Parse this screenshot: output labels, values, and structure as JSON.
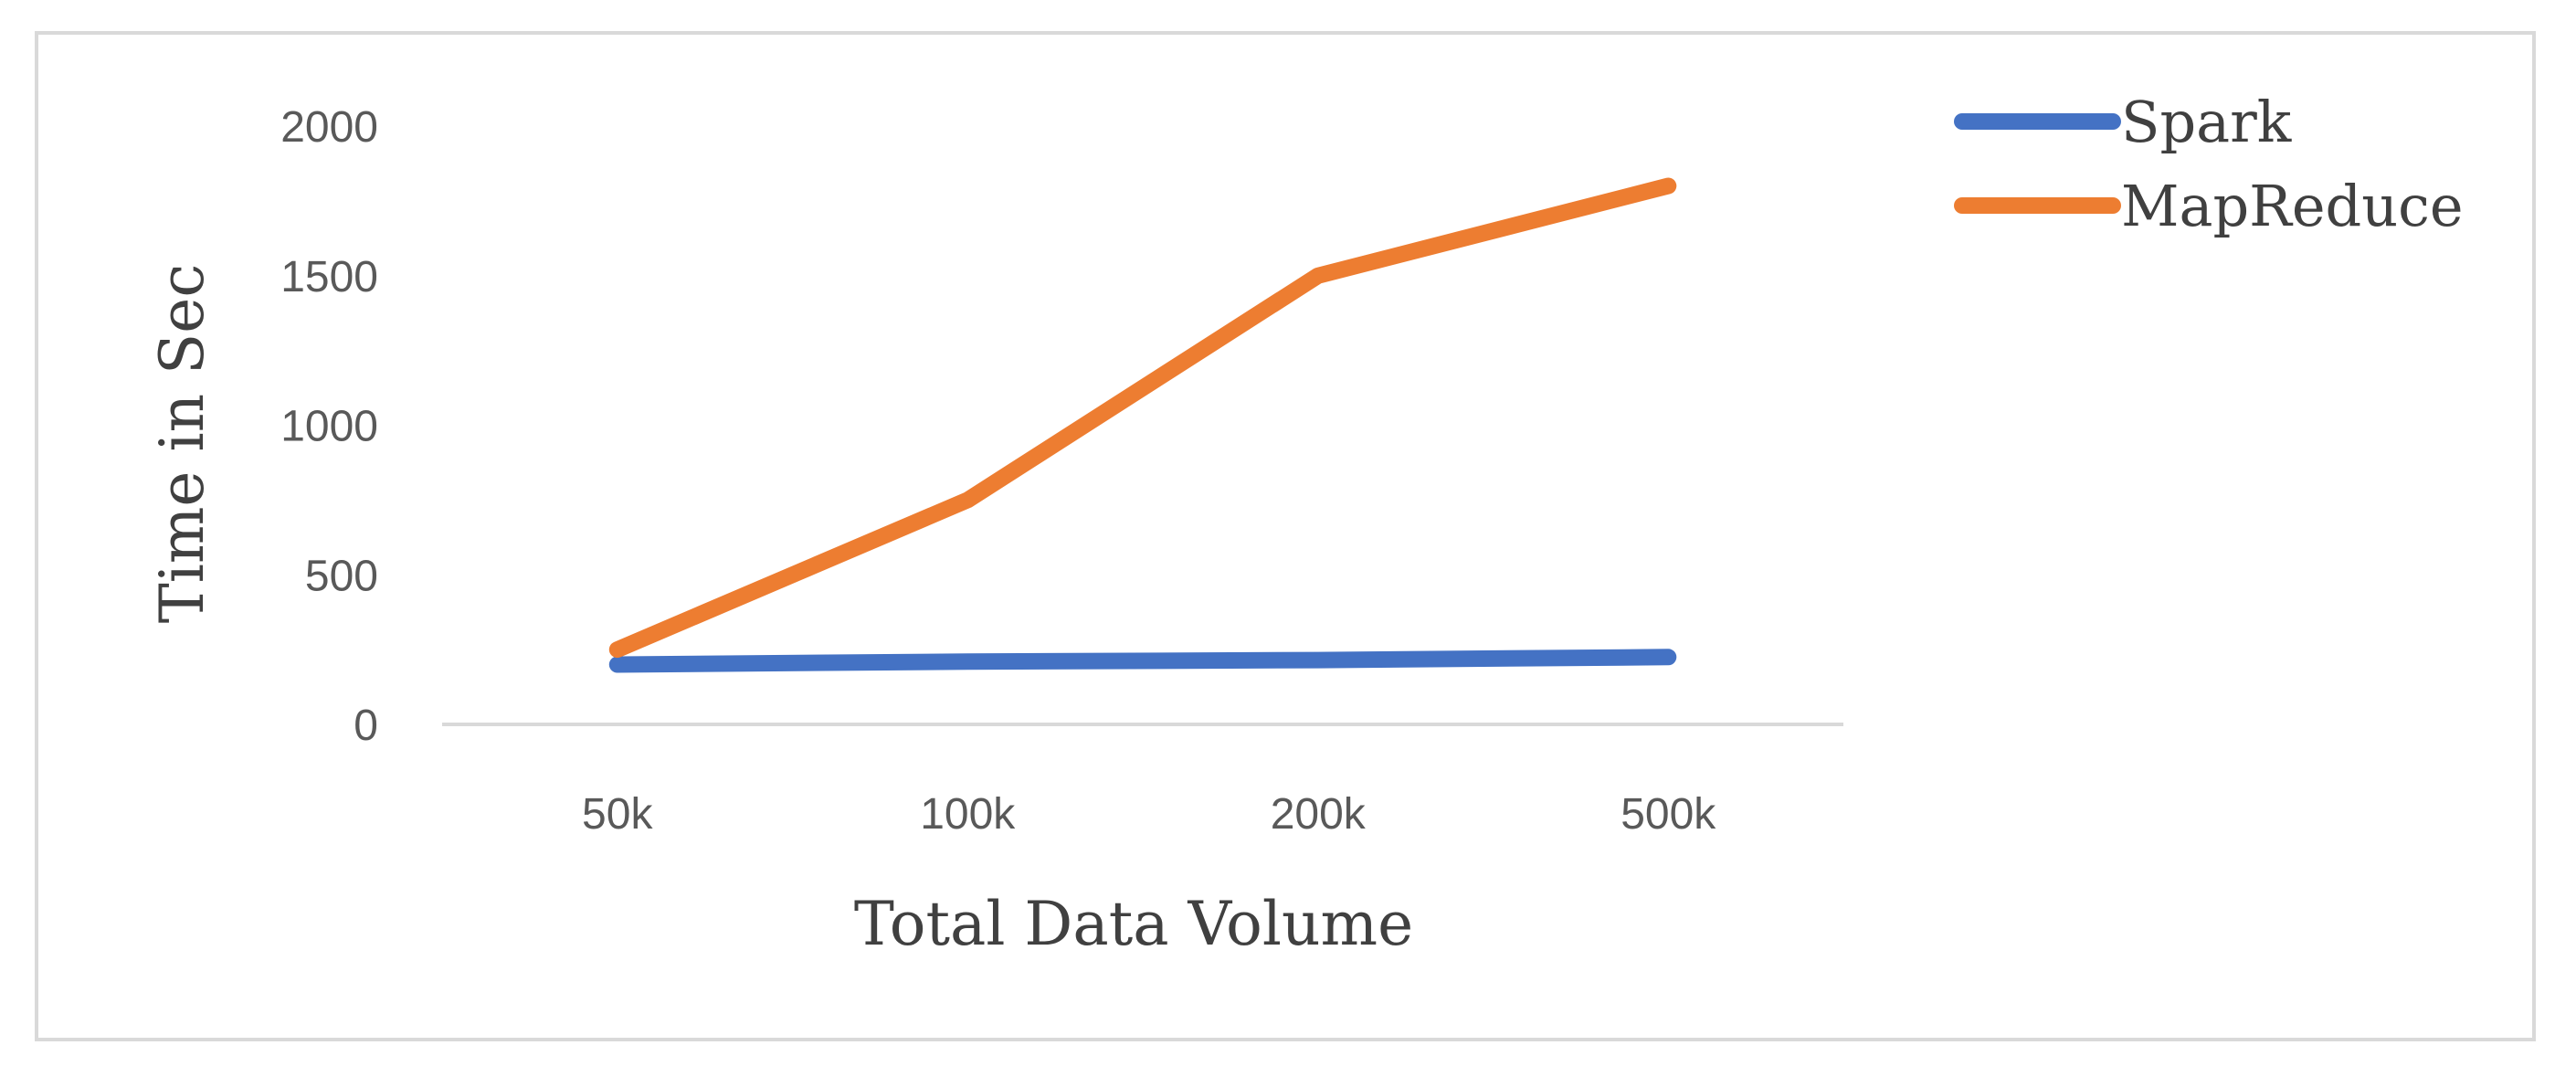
{
  "chart_data": {
    "type": "line",
    "title": "",
    "xlabel": "Total Data Volume",
    "ylabel": "Time in Sec",
    "categories": [
      "50k",
      "100k",
      "200k",
      "500k"
    ],
    "ylim": [
      0,
      2000
    ],
    "yticks": [
      0,
      500,
      1000,
      1500,
      2000
    ],
    "grid": false,
    "legend_position": "top-right",
    "series": [
      {
        "name": "Spark",
        "color": "#4472c4",
        "values": [
          200,
          210,
          215,
          225
        ]
      },
      {
        "name": "MapReduce",
        "color": "#ed7d31",
        "values": [
          250,
          750,
          1500,
          1800
        ]
      }
    ]
  }
}
